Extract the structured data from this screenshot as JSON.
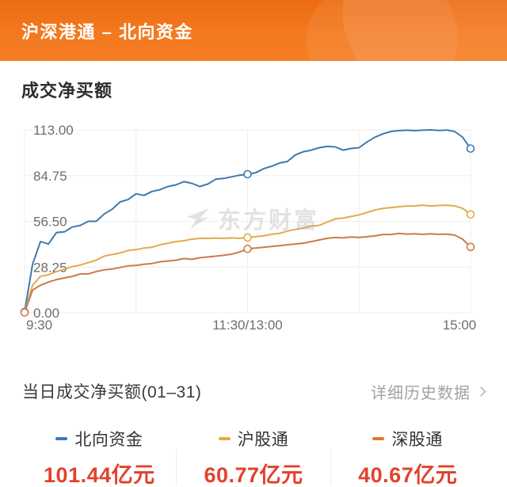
{
  "header": {
    "title": "沪深港通 – 北向资金"
  },
  "section": {
    "title": "成交净买额"
  },
  "chart_data": {
    "type": "line",
    "title": "成交净买额",
    "unit": "亿元",
    "watermark": "东方财富",
    "grid": true,
    "x_axis": {
      "labels": [
        "9:30",
        "11:30/13:00",
        "15:00"
      ]
    },
    "y_axis": {
      "range": [
        0,
        113
      ],
      "ticks": [
        0,
        28.25,
        56.5,
        84.75,
        113
      ],
      "tick_labels": [
        "0.00",
        "28.25",
        "56.50",
        "84.75",
        "113.00"
      ]
    },
    "marker_indices": [
      0,
      28,
      56
    ],
    "series": [
      {
        "name": "北向资金",
        "color": "#3e79ad",
        "values": [
          0.5,
          30,
          44,
          42.5,
          49.5,
          50,
          53,
          54,
          56.5,
          56.5,
          61,
          64,
          68.5,
          70,
          73.5,
          72.5,
          75,
          76,
          78,
          79,
          81,
          80,
          78,
          79.5,
          82.5,
          83,
          84,
          85,
          85.6,
          86.5,
          89,
          90.5,
          92.5,
          93.5,
          97.5,
          99.5,
          100.5,
          102,
          102.8,
          102.5,
          100.5,
          101.5,
          102,
          105.5,
          108.5,
          110.5,
          112,
          112.5,
          112.8,
          112.5,
          112.8,
          113,
          112.6,
          112.9,
          112,
          108.5,
          101.44
        ]
      },
      {
        "name": "沪股通",
        "color": "#e3a94f",
        "values": [
          0.3,
          17,
          22.5,
          23.5,
          25.5,
          27,
          28.5,
          29.5,
          31,
          32.5,
          35,
          36,
          37,
          38.5,
          39,
          40,
          40.5,
          42,
          43,
          44,
          44.5,
          45.5,
          46,
          46,
          46.2,
          46,
          46.3,
          46,
          46.5,
          47,
          47.5,
          48.5,
          49,
          50.5,
          51.5,
          52.5,
          53.5,
          54,
          56,
          58,
          58.5,
          59.5,
          60.5,
          62,
          63.5,
          64.5,
          65,
          65.5,
          66,
          66,
          66.5,
          66,
          66.3,
          66.5,
          66,
          64.5,
          60.77
        ]
      },
      {
        "name": "深股通",
        "color": "#cd7a4a",
        "values": [
          0.2,
          14,
          17,
          19,
          20.5,
          21.5,
          22.5,
          24,
          24,
          25.5,
          26.5,
          27,
          28,
          29,
          29.3,
          30,
          30.5,
          31.5,
          32,
          32.5,
          33.5,
          33,
          34,
          34.5,
          35,
          35.5,
          36.2,
          37.5,
          39.5,
          40,
          40.5,
          41,
          41.5,
          42,
          42.5,
          43,
          44,
          45,
          46,
          46.5,
          46.3,
          46.8,
          46.5,
          47,
          47.5,
          48.4,
          48.4,
          49,
          48.6,
          48.8,
          48.5,
          48.8,
          48.5,
          48.6,
          48,
          45.5,
          40.67
        ]
      }
    ]
  },
  "summary": {
    "title": "当日成交净买额(01–31)",
    "link_label": "详细历史数据",
    "items": [
      {
        "label": "北向资金",
        "color": "#3b7ab5",
        "value": "101.44亿元"
      },
      {
        "label": "沪股通",
        "color": "#eaa83e",
        "value": "60.77亿元"
      },
      {
        "label": "深股通",
        "color": "#e0772f",
        "value": "40.67亿元"
      }
    ]
  }
}
